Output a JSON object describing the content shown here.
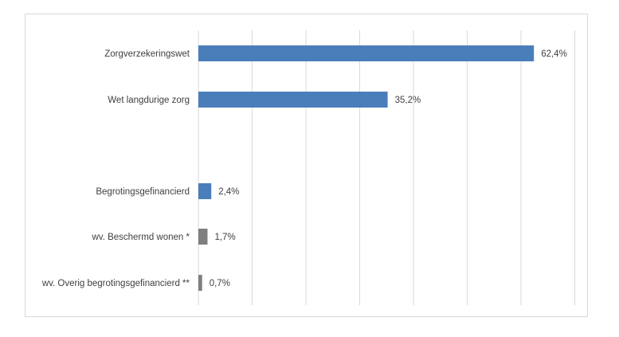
{
  "chart_data": {
    "type": "bar",
    "orientation": "horizontal",
    "title": "",
    "xlabel": "",
    "ylabel": "",
    "xlim": [
      0,
      70
    ],
    "grid": true,
    "legend": "none",
    "categories": [
      "Zorgverzekeringswet",
      "Wet langdurige zorg",
      "",
      "Begrotingsgefinancierd",
      "wv. Beschermd wonen *",
      "wv. Overig begrotingsgefinancierd **"
    ],
    "values": [
      62.4,
      35.2,
      null,
      2.4,
      1.7,
      0.7
    ],
    "value_labels": [
      "62,4%",
      "35,2%",
      "",
      "2,4%",
      "1,7%",
      "0,7%"
    ],
    "colors": [
      "#4a7ebb",
      "#4a7ebb",
      "",
      "#4a7ebb",
      "#7f7f7f",
      "#7f7f7f"
    ]
  }
}
